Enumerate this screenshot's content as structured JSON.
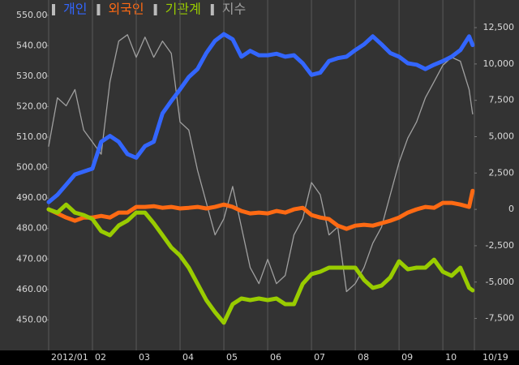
{
  "chart_data": {
    "type": "line",
    "x": [
      1,
      1.2,
      1.4,
      1.6,
      1.8,
      2,
      2.2,
      2.4,
      2.6,
      2.8,
      3,
      3.2,
      3.4,
      3.6,
      3.8,
      4,
      4.2,
      4.4,
      4.6,
      4.8,
      5,
      5.2,
      5.4,
      5.6,
      5.8,
      6,
      6.2,
      6.4,
      6.6,
      6.8,
      7,
      7.2,
      7.4,
      7.6,
      7.8,
      8,
      8.2,
      8.4,
      8.6,
      8.8,
      9,
      9.2,
      9.4,
      9.6,
      9.8,
      10,
      10.2,
      10.4,
      10.6,
      10.68
    ],
    "xlim": [
      1,
      10.72
    ],
    "xticks": [
      {
        "value": 1,
        "label": "2012/01"
      },
      {
        "value": 2,
        "label": "02"
      },
      {
        "value": 3,
        "label": "03"
      },
      {
        "value": 4,
        "label": "04"
      },
      {
        "value": 5,
        "label": "05"
      },
      {
        "value": 6,
        "label": "06"
      },
      {
        "value": 7,
        "label": "07"
      },
      {
        "value": 8,
        "label": "08"
      },
      {
        "value": 9,
        "label": "09"
      },
      {
        "value": 10,
        "label": "10"
      },
      {
        "value": 10.72,
        "label": "10/19"
      }
    ],
    "ylim": [
      440,
      555
    ],
    "yticks": [
      {
        "value": 450,
        "label": "450.00"
      },
      {
        "value": 460,
        "label": "460.00"
      },
      {
        "value": 470,
        "label": "470.00"
      },
      {
        "value": 480,
        "label": "480.00"
      },
      {
        "value": 490,
        "label": "490.00"
      },
      {
        "value": 500,
        "label": "500.00"
      },
      {
        "value": 510,
        "label": "510.00"
      },
      {
        "value": 520,
        "label": "520.00"
      },
      {
        "value": 530,
        "label": "530.00"
      },
      {
        "value": 540,
        "label": "540.00"
      },
      {
        "value": 550,
        "label": "550.00"
      }
    ],
    "y2lim": [
      -9700,
      14400
    ],
    "y2ticks": [
      {
        "value": -7500,
        "label": "-7,500"
      },
      {
        "value": -5000,
        "label": "-5,000"
      },
      {
        "value": -2500,
        "label": "-2,500"
      },
      0,
      {
        "value": 2500,
        "label": "2,500"
      },
      {
        "value": 5000,
        "label": "5,000"
      },
      {
        "value": 7500,
        "label": "7,500"
      },
      {
        "value": 10000,
        "label": "10,000"
      },
      {
        "value": 12500,
        "label": "12,500"
      }
    ],
    "series": [
      {
        "name": "개인",
        "color": "#3366ff",
        "axis": "y2",
        "values": [
          500,
          1000,
          1700,
          2400,
          2600,
          2800,
          4650,
          5050,
          4650,
          3800,
          3550,
          4350,
          4650,
          6600,
          7450,
          8250,
          9100,
          9650,
          10750,
          11600,
          12050,
          11700,
          10500,
          10900,
          10600,
          10600,
          10700,
          10500,
          10600,
          10050,
          9250,
          9400,
          10200,
          10400,
          10500,
          10950,
          11350,
          11900,
          11350,
          10750,
          10500,
          10050,
          9950,
          9650,
          9950,
          10200,
          10500,
          10950,
          11900,
          11300
        ]
      },
      {
        "name": "외국인",
        "color": "#ff6a13",
        "axis": "y2",
        "values": [
          0,
          -280,
          -560,
          -780,
          -560,
          -560,
          -450,
          -560,
          -220,
          -220,
          170,
          170,
          220,
          110,
          170,
          60,
          110,
          170,
          60,
          170,
          330,
          170,
          -110,
          -280,
          -220,
          -280,
          -110,
          -220,
          0,
          110,
          -390,
          -560,
          -670,
          -1120,
          -1340,
          -1120,
          -1060,
          -1120,
          -950,
          -780,
          -560,
          -220,
          0,
          170,
          110,
          450,
          450,
          330,
          170,
          1280
        ]
      },
      {
        "name": "기관계",
        "color": "#99cc00",
        "axis": "y2",
        "values": [
          0,
          -220,
          330,
          -220,
          -390,
          -670,
          -1500,
          -1780,
          -1110,
          -780,
          -220,
          -220,
          -950,
          -1780,
          -2620,
          -3180,
          -4010,
          -5120,
          -6240,
          -7070,
          -7800,
          -6520,
          -6130,
          -6240,
          -6130,
          -6240,
          -6130,
          -6520,
          -6520,
          -5120,
          -4450,
          -4290,
          -4010,
          -4010,
          -4010,
          -4010,
          -4850,
          -5400,
          -5240,
          -4680,
          -3570,
          -4120,
          -4010,
          -4010,
          -3460,
          -4290,
          -4570,
          -4010,
          -5400,
          -5570
        ]
      },
      {
        "name": "지수",
        "color": "#a0a0a0",
        "axis": "y",
        "values": [
          507,
          522.9,
          520.3,
          525.6,
          512.3,
          508.4,
          504.4,
          528.2,
          541.5,
          543.6,
          536.2,
          542.8,
          536.2,
          541.5,
          537.5,
          515,
          512.3,
          499.1,
          488.5,
          477.9,
          483.2,
          493.8,
          480.5,
          467.2,
          461.9,
          469.9,
          461.9,
          464.6,
          477.9,
          483.2,
          495.1,
          491.1,
          477.9,
          480.5,
          459.3,
          461.9,
          467.2,
          475.2,
          480.5,
          491.1,
          501.7,
          509.7,
          515,
          522.9,
          528.2,
          533.6,
          536.2,
          534.9,
          525.6,
          517.6
        ]
      }
    ],
    "grid": true
  }
}
